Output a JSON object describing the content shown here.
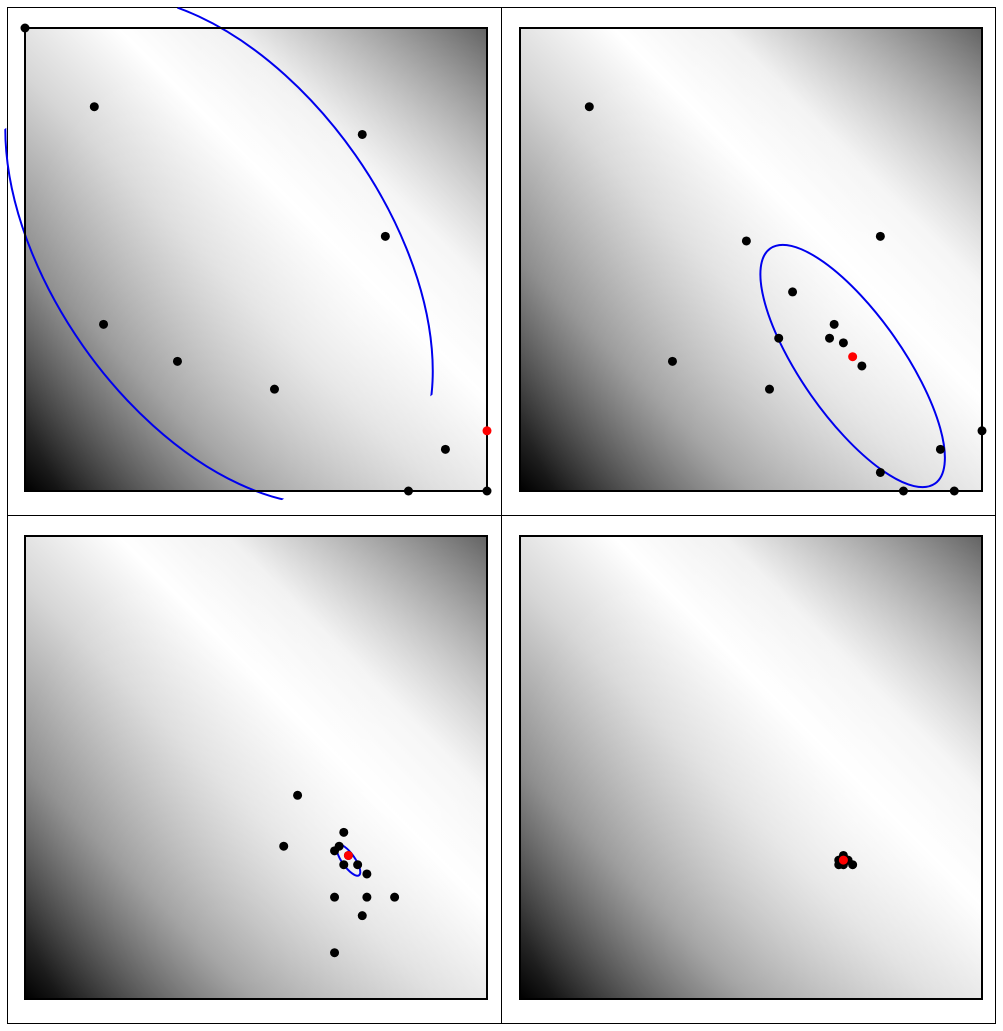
{
  "figure": {
    "description_free": true
  },
  "colors": {
    "ellipse": "#0000ee",
    "point": "#000000",
    "mean": "#ff0000",
    "background_light": "#ffffff",
    "background_dark": "#000000",
    "frame": "#000000"
  },
  "chart_data": [
    {
      "type": "scatter",
      "title": "",
      "xlim": [
        0,
        1
      ],
      "ylim": [
        0,
        1
      ],
      "grid": false,
      "legend": "none",
      "background": "heatmap",
      "points": [
        {
          "x": 0.0,
          "y": 1.0
        },
        {
          "x": 0.15,
          "y": 0.83
        },
        {
          "x": 0.73,
          "y": 0.77
        },
        {
          "x": 0.78,
          "y": 0.55
        },
        {
          "x": 0.17,
          "y": 0.36
        },
        {
          "x": 0.33,
          "y": 0.28
        },
        {
          "x": 0.54,
          "y": 0.22
        },
        {
          "x": 0.91,
          "y": 0.09
        },
        {
          "x": 0.83,
          "y": 0.0
        },
        {
          "x": 1.0,
          "y": 0.0
        }
      ],
      "mean": {
        "x": 1.0,
        "y": 0.13
      },
      "ellipse": {
        "cx": 0.42,
        "cy": 0.52,
        "rx": 0.36,
        "ry": 0.62,
        "angle": -35
      },
      "clip_to_box": true
    },
    {
      "type": "scatter",
      "title": "",
      "xlim": [
        0,
        1
      ],
      "ylim": [
        0,
        1
      ],
      "grid": false,
      "legend": "none",
      "background": "heatmap",
      "points": [
        {
          "x": 0.15,
          "y": 0.83
        },
        {
          "x": 0.49,
          "y": 0.54
        },
        {
          "x": 0.78,
          "y": 0.55
        },
        {
          "x": 0.59,
          "y": 0.43
        },
        {
          "x": 0.68,
          "y": 0.36
        },
        {
          "x": 0.67,
          "y": 0.33
        },
        {
          "x": 0.56,
          "y": 0.33
        },
        {
          "x": 0.7,
          "y": 0.32
        },
        {
          "x": 0.74,
          "y": 0.27
        },
        {
          "x": 0.33,
          "y": 0.28
        },
        {
          "x": 0.54,
          "y": 0.22
        },
        {
          "x": 1.0,
          "y": 0.13
        },
        {
          "x": 0.91,
          "y": 0.09
        },
        {
          "x": 0.78,
          "y": 0.04
        },
        {
          "x": 0.83,
          "y": 0.0
        },
        {
          "x": 0.94,
          "y": 0.0
        }
      ],
      "mean": {
        "x": 0.72,
        "y": 0.29
      },
      "ellipse": {
        "cx": 0.72,
        "cy": 0.27,
        "rx": 0.11,
        "ry": 0.31,
        "angle": -35
      },
      "clip_to_box": false
    },
    {
      "type": "scatter",
      "title": "",
      "xlim": [
        0,
        1
      ],
      "ylim": [
        0,
        1
      ],
      "grid": false,
      "legend": "none",
      "background": "heatmap",
      "points": [
        {
          "x": 0.59,
          "y": 0.44
        },
        {
          "x": 0.56,
          "y": 0.33
        },
        {
          "x": 0.69,
          "y": 0.36
        },
        {
          "x": 0.67,
          "y": 0.32
        },
        {
          "x": 0.68,
          "y": 0.33
        },
        {
          "x": 0.7,
          "y": 0.31
        },
        {
          "x": 0.69,
          "y": 0.29
        },
        {
          "x": 0.72,
          "y": 0.29
        },
        {
          "x": 0.74,
          "y": 0.27
        },
        {
          "x": 0.74,
          "y": 0.22
        },
        {
          "x": 0.67,
          "y": 0.22
        },
        {
          "x": 0.8,
          "y": 0.22
        },
        {
          "x": 0.73,
          "y": 0.18
        },
        {
          "x": 0.67,
          "y": 0.1
        }
      ],
      "mean": {
        "x": 0.7,
        "y": 0.31
      },
      "ellipse": {
        "cx": 0.7,
        "cy": 0.3,
        "rx": 0.014,
        "ry": 0.04,
        "angle": -35
      },
      "clip_to_box": false
    },
    {
      "type": "scatter",
      "title": "",
      "xlim": [
        0,
        1
      ],
      "ylim": [
        0,
        1
      ],
      "grid": false,
      "legend": "none",
      "background": "heatmap",
      "points": [
        {
          "x": 0.7,
          "y": 0.31
        },
        {
          "x": 0.69,
          "y": 0.3
        },
        {
          "x": 0.71,
          "y": 0.3
        },
        {
          "x": 0.7,
          "y": 0.29
        },
        {
          "x": 0.72,
          "y": 0.29
        },
        {
          "x": 0.69,
          "y": 0.29
        },
        {
          "x": 0.7,
          "y": 0.3
        }
      ],
      "mean": {
        "x": 0.7,
        "y": 0.3
      },
      "ellipse": null,
      "clip_to_box": false
    }
  ]
}
